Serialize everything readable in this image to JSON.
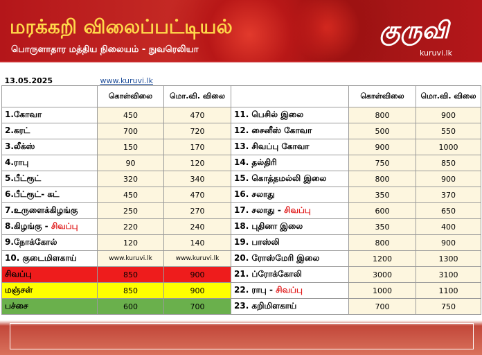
{
  "header": {
    "title": "மரக்கறி விலைப்பட்டியல்",
    "subtitle": "பொருளாதார மத்திய நிலையம் - நுவரெலியா",
    "logo": "குருவி",
    "logo_url": "kuruvi.lk"
  },
  "table": {
    "date": "13.05.2025",
    "site": "www.kuruvi.lk",
    "columns": [
      "கொள்விலை",
      "மொ.வி. விலை"
    ],
    "rows": [
      {
        "left": {
          "name": "1.கோவா",
          "buy": 450,
          "sell": 470
        },
        "right": {
          "name": "11. பெசில் இலை",
          "buy": 800,
          "sell": 900
        }
      },
      {
        "left": {
          "name": "2.கரட்",
          "buy": 700,
          "sell": 720
        },
        "right": {
          "name": "12. சைனீஸ் கோவா",
          "buy": 500,
          "sell": 550
        }
      },
      {
        "left": {
          "name": "3.லீக்ஸ்",
          "buy": 150,
          "sell": 170
        },
        "right": {
          "name": "13. சிவப்பு கோவா",
          "buy": 900,
          "sell": 1000
        }
      },
      {
        "left": {
          "name": "4.ராபு",
          "buy": 90,
          "sell": 120
        },
        "right": {
          "name": "14. தல்திரி",
          "buy": 750,
          "sell": 850
        }
      },
      {
        "left": {
          "name": "5.பீட்ரூட்",
          "buy": 320,
          "sell": 340
        },
        "right": {
          "name": "15. கொத்தமல்லி இலை",
          "buy": 800,
          "sell": 900
        }
      },
      {
        "left": {
          "name": "6.பீட்ரூட்- கட்",
          "buy": 450,
          "sell": 470
        },
        "right": {
          "name": "16. சலாது",
          "buy": 350,
          "sell": 370
        }
      },
      {
        "left": {
          "name": "7.உருளைக்கிழங்கு",
          "buy": 250,
          "sell": 270
        },
        "right": {
          "name": "17. சலாது - ",
          "name_red": "சிவப்பு",
          "buy": 600,
          "sell": 650
        }
      },
      {
        "left": {
          "name": "8.கிழங்கு - ",
          "name_red": "சிவப்பு",
          "buy": 220,
          "sell": 240
        },
        "right": {
          "name": "18. புதினா இலை",
          "buy": 350,
          "sell": 400
        }
      },
      {
        "left": {
          "name": "9.நோக்கோல்",
          "buy": 120,
          "sell": 140
        },
        "right": {
          "name": "19. பாஸ்லி",
          "buy": 800,
          "sell": 900
        }
      },
      {
        "left": {
          "name": "10. குடைமிளகாய்",
          "buy": "www.kuruvi.lk",
          "sell": "www.kuruvi.lk"
        },
        "right": {
          "name": "20. ரோஸ்மேரி இலை",
          "buy": 1200,
          "sell": 1300
        }
      },
      {
        "left": {
          "name": "சிவப்பு",
          "buy": 850,
          "sell": 900,
          "color": "#ee1c1c"
        },
        "right": {
          "name": "21. ப்ரோக்கோலி",
          "buy": 3000,
          "sell": 3100
        }
      },
      {
        "left": {
          "name": "மஞ்சள்",
          "buy": 850,
          "sell": 900,
          "color": "#ffff00"
        },
        "right": {
          "name": "22. ராபு - ",
          "name_red": "சிவப்பு",
          "buy": 1000,
          "sell": 1100
        }
      },
      {
        "left": {
          "name": "பச்சை",
          "buy": 600,
          "sell": 700,
          "color": "#6ab04c"
        },
        "right": {
          "name": "23. கறிமிளகாய்",
          "buy": 700,
          "sell": 750
        }
      }
    ]
  }
}
